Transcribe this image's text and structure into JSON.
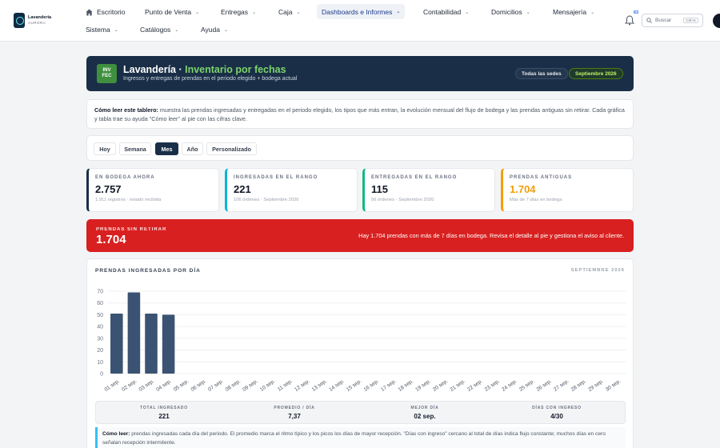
{
  "brand": {
    "name": "Lavandería",
    "tagline": "AURORA"
  },
  "nav": {
    "row1": [
      {
        "label": "Escritorio",
        "icon": "home-icon",
        "chevron": false
      },
      {
        "label": "Punto de Venta",
        "chevron": true
      },
      {
        "label": "Entregas",
        "chevron": true
      },
      {
        "label": "Caja",
        "chevron": true
      },
      {
        "label": "Dashboards e Informes",
        "chevron": true,
        "active": true
      },
      {
        "label": "Contabilidad",
        "chevron": true
      },
      {
        "label": "Domicilios",
        "chevron": true
      },
      {
        "label": "Mensajería",
        "chevron": true
      }
    ],
    "row2": [
      {
        "label": "Sistema",
        "chevron": true
      },
      {
        "label": "Catálogos",
        "chevron": true
      },
      {
        "label": "Ayuda",
        "chevron": true
      }
    ],
    "notifications_count": "63",
    "search_placeholder": "Buscar",
    "search_shortcut": "Ctrl+K"
  },
  "hero": {
    "badge_line1": "INV",
    "badge_line2": "FEC",
    "title_prefix": "Lavandería · ",
    "title_accent": "Inventario por fechas",
    "subtitle": "Ingresos y entregas de prendas en el periodo elegido + bodega actual",
    "scope_pill": "Todas las sedes",
    "period_pill": "Septiembre 2026"
  },
  "help": {
    "lead": "Cómo leer este tablero:",
    "text": " muestra las prendas ingresadas y entregadas en el periodo elegido, los tipos que más entran, la evolución mensual del flujo de bodega y las prendas antiguas sin retirar. Cada gráfica y tabla trae su ayuda \"Cómo leer\" al pie con las cifras clave."
  },
  "ranges": {
    "selected": "Mes",
    "options": [
      "Hoy",
      "Semana",
      "Mes",
      "Año",
      "Personalizado"
    ]
  },
  "kpis": [
    {
      "label": "En bodega ahora",
      "value": "2.757",
      "sub": "1.911 registros · estado recibida",
      "color": "#1a2f47"
    },
    {
      "label": "Ingresadas en el rango",
      "value": "221",
      "sub": "106 órdenes · Septiembre 2026",
      "color": "#06b6d4"
    },
    {
      "label": "Entregadas en el rango",
      "value": "115",
      "sub": "56 órdenes · Septiembre 2026",
      "color": "#10b981"
    },
    {
      "label": "Prendas antiguas",
      "value": "1.704",
      "sub": "Más de 7 días en bodega",
      "color": "#f59e0b",
      "value_color": "#f59e0b"
    }
  ],
  "alert": {
    "label": "Prendas sin retirar",
    "value": "1.704",
    "message": "Hay 1.704 prendas con más de 7 días en bodega. Revisa el detalle al pie y gestiona el aviso al cliente."
  },
  "chart_card": {
    "title": "Prendas ingresadas por día",
    "period": "Septiembre 2026"
  },
  "chart_data": {
    "type": "bar",
    "categories": [
      "01 sep.",
      "02 sep.",
      "03 sep.",
      "04 sep.",
      "05 sep.",
      "06 sep.",
      "07 sep.",
      "08 sep.",
      "09 sep.",
      "10 sep.",
      "11 sep.",
      "12 sep.",
      "13 sep.",
      "14 sep.",
      "15 sep.",
      "16 sep.",
      "17 sep.",
      "18 sep.",
      "19 sep.",
      "20 sep.",
      "21 sep.",
      "22 sep.",
      "23 sep.",
      "24 sep.",
      "25 sep.",
      "26 sep.",
      "27 sep.",
      "28 sep.",
      "29 sep.",
      "30 sep."
    ],
    "values": [
      51,
      69,
      51,
      50,
      0,
      0,
      0,
      0,
      0,
      0,
      0,
      0,
      0,
      0,
      0,
      0,
      0,
      0,
      0,
      0,
      0,
      0,
      0,
      0,
      0,
      0,
      0,
      0,
      0,
      0
    ],
    "y_ticks": [
      0,
      10,
      20,
      30,
      40,
      50,
      60,
      70
    ],
    "ylim": [
      0,
      70
    ],
    "bar_color": "#3b5372",
    "grid": true,
    "title": "Prendas ingresadas por día"
  },
  "stats": [
    {
      "label": "Total ingresado",
      "value": "221"
    },
    {
      "label": "Promedio / día",
      "value": "7,37"
    },
    {
      "label": "Mejor día",
      "value": "02 sep."
    },
    {
      "label": "Días con ingreso",
      "value": "4/30"
    }
  ],
  "chart_note": {
    "lead": "Cómo leer:",
    "text": " prendas ingresadas cada día del periodo. El promedio marca el ritmo típico y los picos los días de mayor recepción. \"Días con ingreso\" cercano al total de días indica flujo constante; muchos días en cero señalan recepción intermitente."
  }
}
